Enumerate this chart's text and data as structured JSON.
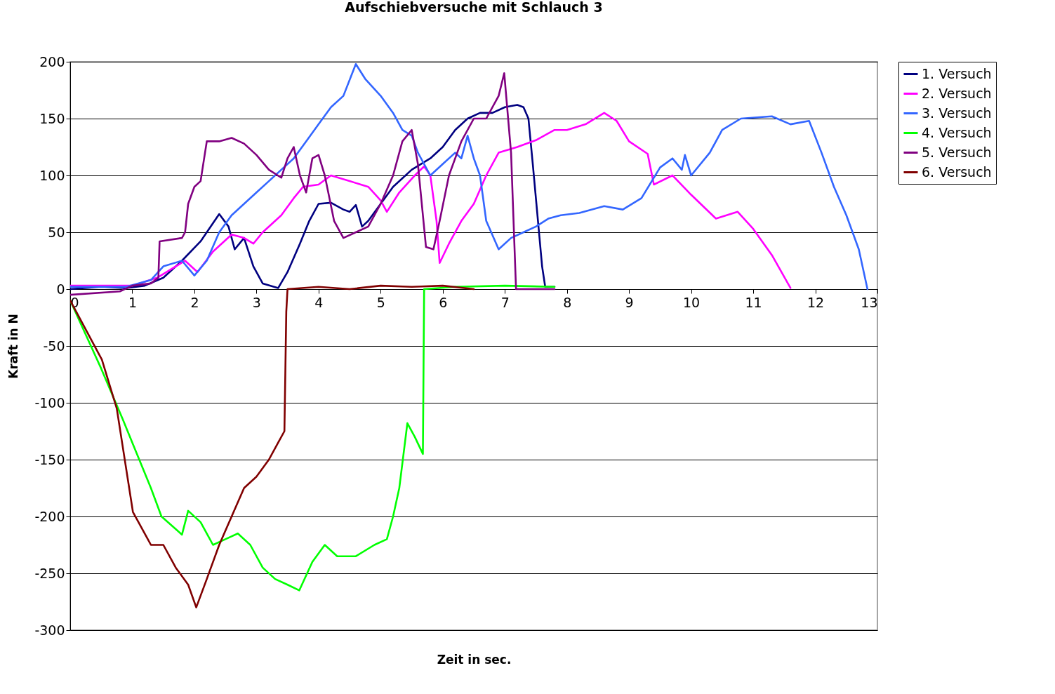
{
  "chart_data": {
    "type": "line",
    "title": "Aufschiebversuche mit Schlauch 3",
    "xlabel": "Zeit in sec.",
    "ylabel": "Kraft in N",
    "xlim": [
      0,
      13
    ],
    "xticks": [
      0,
      1,
      2,
      3,
      4,
      5,
      6,
      7,
      8,
      9,
      10,
      11,
      12,
      13
    ],
    "ylim": [
      -300,
      200
    ],
    "yticks": [
      -300,
      -250,
      -200,
      -150,
      -100,
      -50,
      0,
      50,
      100,
      150,
      200
    ],
    "grid": "y",
    "legend": "right",
    "marker": "none",
    "line_style": "solid",
    "series": [
      {
        "name": "1. Versuch",
        "color": "#000080",
        "x": [
          0,
          0.5,
          0.9,
          1.2,
          1.5,
          1.8,
          2.1,
          2.4,
          2.55,
          2.65,
          2.8,
          2.95,
          3.1,
          3.35,
          3.5,
          3.7,
          3.85,
          4.0,
          4.2,
          4.4,
          4.5,
          4.6,
          4.7,
          4.8,
          5.0,
          5.2,
          5.5,
          5.8,
          6.0,
          6.2,
          6.4,
          6.6,
          6.8,
          7.0,
          7.2,
          7.3,
          7.38,
          7.45,
          7.55,
          7.6,
          7.65,
          7.8
        ],
        "values": [
          0,
          2,
          1,
          3,
          10,
          25,
          42,
          66,
          55,
          35,
          45,
          20,
          5,
          1,
          15,
          40,
          60,
          75,
          76,
          70,
          68,
          74,
          55,
          60,
          75,
          90,
          105,
          115,
          125,
          140,
          150,
          155,
          155,
          160,
          162,
          160,
          150,
          110,
          50,
          20,
          2,
          2
        ]
      },
      {
        "name": "2. Versuch",
        "color": "#ff00ff",
        "x": [
          0,
          1,
          1.4,
          1.7,
          1.85,
          2.05,
          2.3,
          2.6,
          2.8,
          2.95,
          3.1,
          3.4,
          3.6,
          3.75,
          4.0,
          4.2,
          4.5,
          4.8,
          5.0,
          5.1,
          5.3,
          5.55,
          5.7,
          5.8,
          5.9,
          5.95,
          6.1,
          6.3,
          6.5,
          6.7,
          6.9,
          7.2,
          7.5,
          7.8,
          8.0,
          8.3,
          8.6,
          8.8,
          9.0,
          9.3,
          9.4,
          9.7,
          10.0,
          10.4,
          10.75,
          11.0,
          11.3,
          11.6
        ],
        "values": [
          3,
          3,
          10,
          20,
          25,
          15,
          33,
          48,
          45,
          40,
          50,
          65,
          80,
          90,
          92,
          100,
          95,
          90,
          78,
          68,
          85,
          100,
          108,
          100,
          60,
          23,
          40,
          60,
          75,
          100,
          120,
          125,
          131,
          140,
          140,
          145,
          155,
          148,
          130,
          119,
          92,
          100,
          83,
          62,
          68,
          53,
          30,
          1
        ]
      },
      {
        "name": "3. Versuch",
        "color": "#3366ff",
        "x": [
          0,
          0.9,
          1.3,
          1.5,
          1.8,
          2.0,
          2.2,
          2.4,
          2.6,
          2.8,
          3.0,
          3.2,
          3.4,
          3.6,
          3.8,
          4.0,
          4.2,
          4.4,
          4.6,
          4.75,
          5.0,
          5.2,
          5.35,
          5.5,
          5.6,
          5.8,
          6.0,
          6.2,
          6.3,
          6.4,
          6.5,
          6.6,
          6.7,
          6.9,
          7.1,
          7.3,
          7.5,
          7.7,
          7.9,
          8.2,
          8.6,
          8.9,
          9.2,
          9.5,
          9.7,
          9.85,
          9.9,
          10.0,
          10.3,
          10.5,
          10.8,
          11.3,
          11.6,
          11.9,
          12.1,
          12.3,
          12.5,
          12.7,
          12.84
        ],
        "values": [
          2,
          2,
          8,
          20,
          25,
          12,
          25,
          50,
          65,
          75,
          85,
          95,
          105,
          115,
          130,
          145,
          160,
          170,
          198,
          185,
          170,
          155,
          140,
          135,
          120,
          100,
          110,
          120,
          115,
          135,
          115,
          100,
          60,
          35,
          45,
          50,
          55,
          62,
          65,
          67,
          73,
          70,
          80,
          107,
          115,
          105,
          118,
          100,
          120,
          140,
          150,
          152,
          145,
          148,
          120,
          90,
          65,
          35,
          0
        ]
      },
      {
        "name": "4. Versuch",
        "color": "#00ff00",
        "x": [
          0,
          0.5,
          0.85,
          1.06,
          1.3,
          1.47,
          1.8,
          1.9,
          2.1,
          2.3,
          2.5,
          2.7,
          2.9,
          3.1,
          3.3,
          3.5,
          3.69,
          3.9,
          4.1,
          4.3,
          4.6,
          4.9,
          5.1,
          5.2,
          5.3,
          5.43,
          5.55,
          5.68,
          5.7,
          6.2,
          7.0,
          7.8
        ],
        "values": [
          -10,
          -70,
          -115,
          -143,
          -175,
          -200,
          -216,
          -195,
          -205,
          -225,
          -220,
          -215,
          -225,
          -245,
          -255,
          -260,
          -265,
          -240,
          -225,
          -235,
          -235,
          -225,
          -220,
          -200,
          -175,
          -118,
          -130,
          -145,
          0,
          2,
          3,
          2
        ]
      },
      {
        "name": "5. Versuch",
        "color": "#800080",
        "x": [
          0,
          0.8,
          1.0,
          1.3,
          1.42,
          1.44,
          1.8,
          1.85,
          1.9,
          2.0,
          2.1,
          2.2,
          2.4,
          2.6,
          2.8,
          3.0,
          3.2,
          3.4,
          3.5,
          3.6,
          3.7,
          3.8,
          3.9,
          4.0,
          4.1,
          4.25,
          4.4,
          4.6,
          4.8,
          5.0,
          5.2,
          5.35,
          5.5,
          5.6,
          5.73,
          5.85,
          5.95,
          6.1,
          6.3,
          6.5,
          6.7,
          6.9,
          6.99,
          7.1,
          7.18,
          7.8
        ],
        "values": [
          -5,
          -2,
          3,
          5,
          10,
          42,
          45,
          50,
          75,
          90,
          95,
          130,
          130,
          133,
          128,
          118,
          105,
          98,
          115,
          125,
          100,
          85,
          115,
          118,
          100,
          60,
          45,
          50,
          55,
          75,
          100,
          130,
          140,
          110,
          37,
          35,
          60,
          100,
          130,
          150,
          150,
          170,
          190,
          120,
          0,
          0
        ]
      },
      {
        "name": "6. Versuch",
        "color": "#800000",
        "x": [
          0,
          0.51,
          0.75,
          1.01,
          1.3,
          1.5,
          1.7,
          1.9,
          2.03,
          2.2,
          2.4,
          2.6,
          2.8,
          3.0,
          3.2,
          3.35,
          3.45,
          3.48,
          3.5,
          4.0,
          4.5,
          5.0,
          5.5,
          6.0,
          6.5
        ],
        "values": [
          -10,
          -62,
          -105,
          -196,
          -225,
          -225,
          -245,
          -260,
          -280,
          -255,
          -225,
          -200,
          -175,
          -165,
          -150,
          -135,
          -125,
          -20,
          0,
          2,
          0,
          3,
          2,
          3,
          0
        ]
      }
    ]
  }
}
